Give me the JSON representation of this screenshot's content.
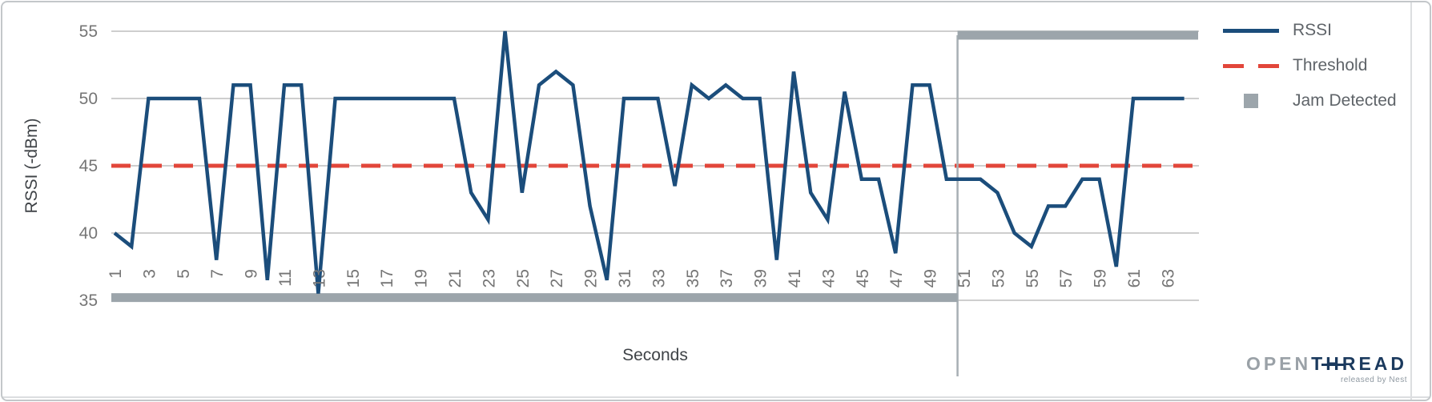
{
  "chart_data": {
    "type": "line",
    "xlabel": "Seconds",
    "ylabel": "RSSI (-dBm)",
    "ylim": [
      35,
      55
    ],
    "y_ticks": [
      55,
      50,
      45,
      40,
      35
    ],
    "x_ticks": [
      1,
      3,
      5,
      7,
      9,
      11,
      13,
      15,
      17,
      19,
      21,
      23,
      25,
      27,
      29,
      31,
      33,
      35,
      37,
      39,
      41,
      43,
      45,
      47,
      49,
      51,
      53,
      55,
      57,
      59,
      61,
      63
    ],
    "x": [
      1,
      2,
      3,
      4,
      5,
      6,
      7,
      8,
      9,
      10,
      11,
      12,
      13,
      14,
      15,
      16,
      17,
      18,
      19,
      20,
      21,
      22,
      23,
      24,
      25,
      26,
      27,
      28,
      29,
      30,
      31,
      32,
      33,
      34,
      35,
      36,
      37,
      38,
      39,
      40,
      41,
      42,
      43,
      44,
      45,
      46,
      47,
      48,
      49,
      50,
      51,
      52,
      53,
      54,
      55,
      56,
      57,
      58,
      59,
      60,
      61,
      62,
      63,
      64
    ],
    "grid": true,
    "legend_position": "right",
    "series": [
      {
        "name": "RSSI",
        "type": "line",
        "color": "#1B4D7B",
        "values": [
          40,
          39,
          50,
          50,
          50,
          50,
          38,
          51,
          51,
          36.5,
          51,
          51,
          35.5,
          50,
          50,
          50,
          50,
          50,
          50,
          50,
          50,
          43,
          41,
          55,
          43,
          51,
          52,
          51,
          42,
          36.5,
          50,
          50,
          50,
          43.5,
          51,
          50,
          51,
          50,
          50,
          38,
          52,
          43,
          41,
          50.5,
          44,
          44,
          38.5,
          51,
          51,
          44,
          44,
          44,
          43,
          40,
          39,
          42,
          42,
          44,
          44,
          37.5,
          50,
          50,
          50,
          50
        ]
      },
      {
        "name": "Threshold",
        "type": "dashed-line",
        "color": "#E2463A",
        "value": 45
      },
      {
        "name": "Jam Detected",
        "type": "status-bar",
        "color": "#9CA5AB",
        "connector_color": "#A7AFB4",
        "off_level": 35.2,
        "on_level": 54.7,
        "values": [
          0,
          0,
          0,
          0,
          0,
          0,
          0,
          0,
          0,
          0,
          0,
          0,
          0,
          0,
          0,
          0,
          0,
          0,
          0,
          0,
          0,
          0,
          0,
          0,
          0,
          0,
          0,
          0,
          0,
          0,
          0,
          0,
          0,
          0,
          0,
          0,
          0,
          0,
          0,
          0,
          0,
          0,
          0,
          0,
          0,
          0,
          0,
          0,
          0,
          0,
          1,
          1,
          1,
          1,
          1,
          1,
          1,
          1,
          1,
          1,
          1,
          1,
          1,
          1
        ]
      }
    ]
  },
  "branding": {
    "logo_gray": "OPEN",
    "logo_t": "T",
    "logo_h": "H",
    "logo_rest": "READ",
    "tagline": "released by Nest"
  }
}
